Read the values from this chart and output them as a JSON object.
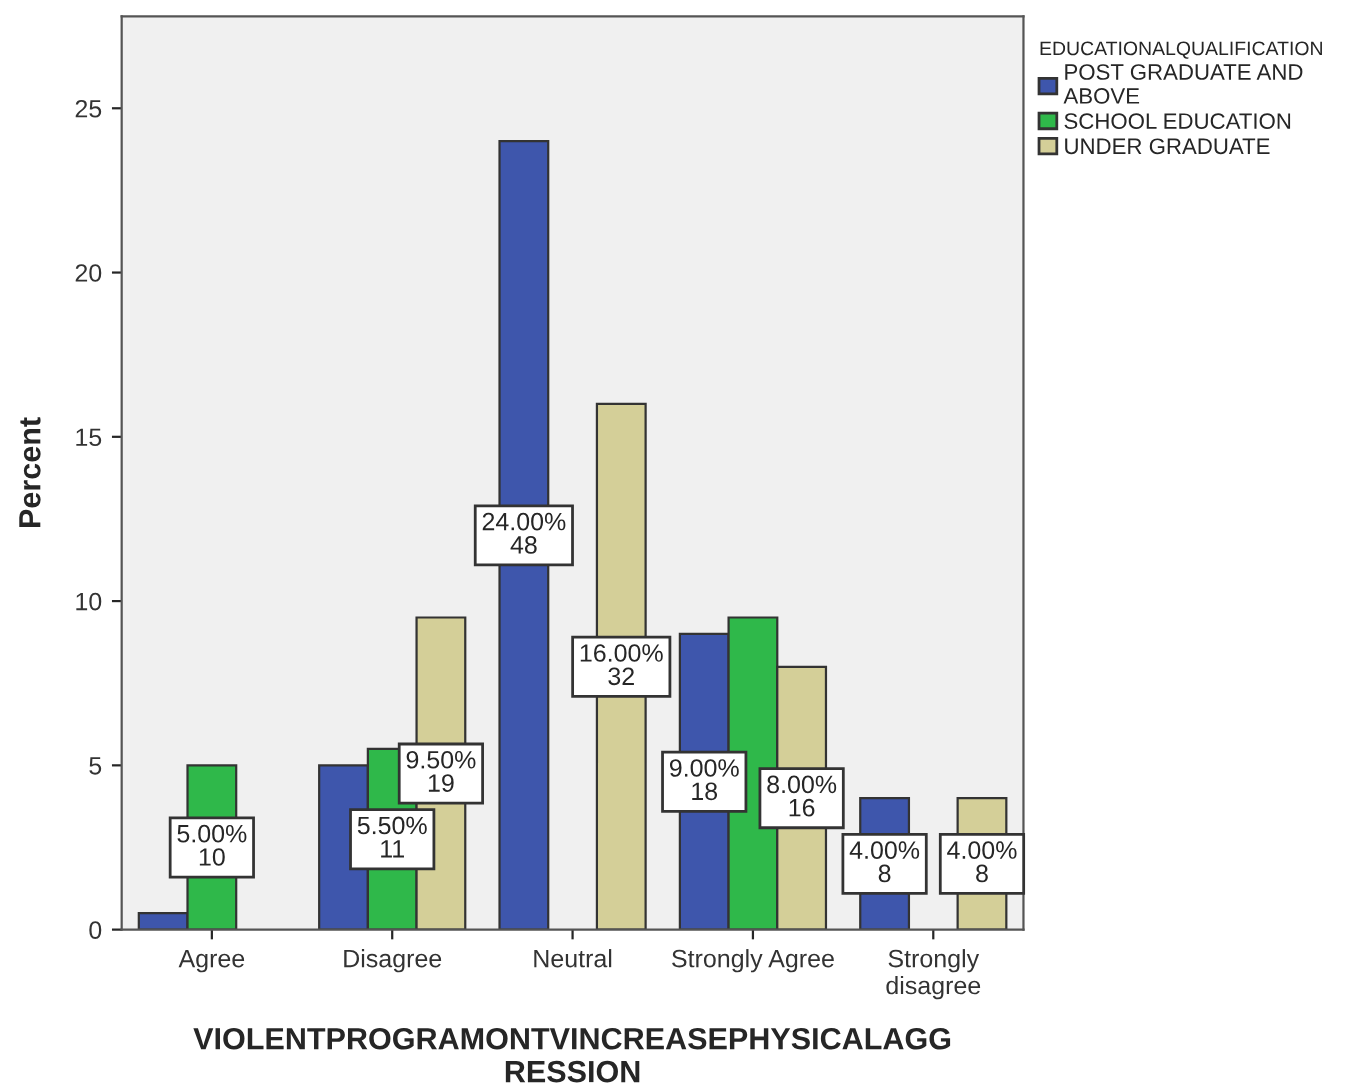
{
  "chart_data": {
    "type": "bar",
    "xlabel": "VIOLENTPROGRAMONTVINCREASEPHYSICALAGG\nRESSION",
    "ylabel": "Percent",
    "legend_title": "EDUCATIONALQUALIFICATION",
    "categories": [
      "Agree",
      "Disagree",
      "Neutral",
      "Strongly Agree",
      "Strongly\ndisagree"
    ],
    "series": [
      {
        "name": "POST GRADUATE AND\nABOVE",
        "color": "#3e56ac",
        "values": [
          0.5,
          5,
          24,
          9,
          4
        ],
        "value_labels": [
          null,
          null,
          "24.00%\n48",
          "9.00%\n18",
          "4.00%\n8"
        ]
      },
      {
        "name": "SCHOOL EDUCATION",
        "color": "#2fb84a",
        "values": [
          5,
          5.5,
          null,
          9.5,
          null
        ],
        "value_labels": [
          "5.00%\n10",
          "5.50%\n11",
          null,
          null,
          null
        ]
      },
      {
        "name": "UNDER GRADUATE",
        "color": "#d4cf98",
        "values": [
          null,
          9.5,
          16,
          8,
          4
        ],
        "value_labels": [
          null,
          "9.50%\n19",
          "16.00%\n32",
          "8.00%\n16",
          "4.00%\n8"
        ]
      }
    ],
    "ylim": [
      0,
      27.8
    ],
    "yticks": [
      0,
      5,
      10,
      15,
      20,
      25
    ],
    "grid": false,
    "legend": "top right"
  }
}
